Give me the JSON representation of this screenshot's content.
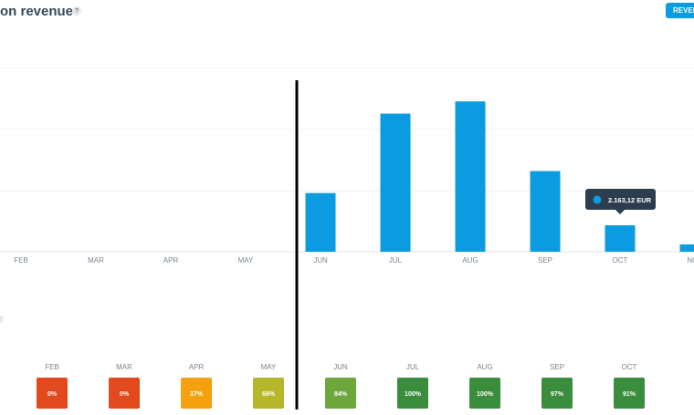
{
  "header": {
    "title": "on revenue",
    "help": "?",
    "button": "REVEN"
  },
  "chart_data": [
    {
      "type": "bar",
      "categories": [
        "FEB",
        "MAR",
        "APR",
        "MAY",
        "JUN",
        "JUL",
        "AUG",
        "SEP",
        "OCT",
        "NOV"
      ],
      "values": [
        0,
        0,
        0,
        0,
        4800,
        11300,
        12300,
        6600,
        2163.12,
        600
      ],
      "color": "#0a9be0",
      "ylim": [
        0,
        15000
      ],
      "yticks": [
        0,
        5000,
        10000,
        15000
      ],
      "grid": true,
      "tooltip": {
        "category": "OCT",
        "label": "2.163,12 EUR"
      }
    },
    {
      "type": "tiles",
      "categories": [
        "FEB",
        "MAR",
        "APR",
        "MAY",
        "JUN",
        "JUL",
        "AUG",
        "SEP",
        "OCT"
      ],
      "values": [
        0,
        0,
        37,
        68,
        84,
        100,
        100,
        97,
        91
      ],
      "value_labels": [
        "0%",
        "0%",
        "37%",
        "68%",
        "84%",
        "100%",
        "100%",
        "97%",
        "91%"
      ],
      "colors": [
        "#e2491d",
        "#e2491d",
        "#f5a10f",
        "#b6b62b",
        "#6da63a",
        "#3a8d3c",
        "#3a8d3c",
        "#3a8d3c",
        "#3a8d3c"
      ]
    }
  ]
}
